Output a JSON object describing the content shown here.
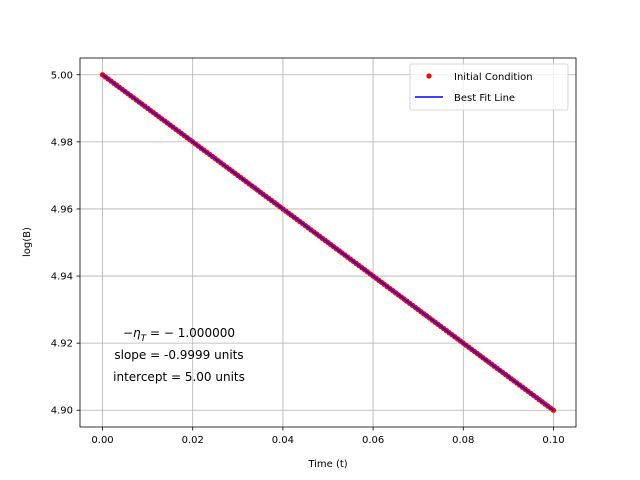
{
  "chart_data": {
    "type": "line",
    "xlabel": "Time (t)",
    "ylabel": "log(B)",
    "xlim": [
      -0.005,
      0.105
    ],
    "ylim": [
      4.895,
      5.005
    ],
    "x_ticks": [
      "0.00",
      "0.02",
      "0.04",
      "0.06",
      "0.08",
      "0.10"
    ],
    "y_ticks": [
      "4.90",
      "4.92",
      "4.94",
      "4.96",
      "4.98",
      "5.00"
    ],
    "grid": true,
    "legend_position": "top-right",
    "series": [
      {
        "name": "Initial Condition",
        "style": "points",
        "color": "#ff0000",
        "x_range": [
          0.0,
          0.1
        ],
        "y_range": [
          5.0,
          4.9
        ]
      },
      {
        "name": "Best Fit Line",
        "style": "line",
        "color": "#0000ff",
        "x": [
          0.0,
          0.1
        ],
        "y": [
          5.0,
          4.9
        ]
      }
    ],
    "annotations": {
      "eta_prefix": "−η",
      "eta_subscript": "T",
      "eta_value": " = − 1.000000",
      "slope": "slope = -0.9999 units",
      "intercept": "intercept = 5.00 units"
    }
  }
}
